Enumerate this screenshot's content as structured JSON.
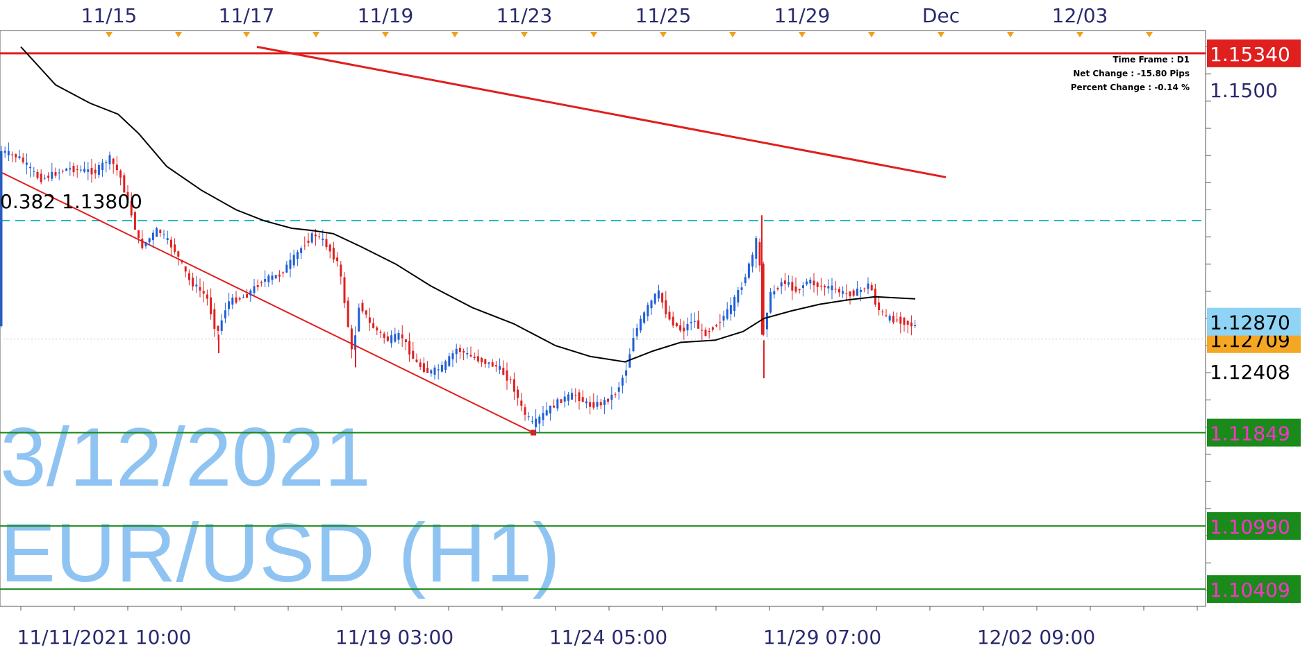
{
  "colors": {
    "up_candle": "#1f5fd6",
    "down_candle": "#e01f1f",
    "moving_average": "#000000",
    "resistance_line": "#e01f1f",
    "fib_line": "#29b6c8",
    "support_line": "#1a8a1a",
    "watermark": "#8fc4f2",
    "axis_text": "#2a2a6e",
    "date_marker": "#f0a020",
    "current_price_bg": "#8fd3f5",
    "secondary_price_bg": "#f5a623",
    "resistance_label_bg": "#e01f1f",
    "support_label_bg": "#1a8a1a",
    "support_label_text": "#ff33cc",
    "resistance_label_text": "#ffffff"
  },
  "watermark": {
    "date": "3/12/2021",
    "symbol": "EUR/USD (H1)"
  },
  "info_box": {
    "time_frame": "Time Frame : D1",
    "net_change": "Net Change : -15.80 Pips",
    "percent_change": "Percent Change : -0.14 %"
  },
  "fib_label": "0.382 1.13800",
  "chart_data": {
    "type": "candlestick",
    "symbol": "EUR/USD",
    "timeframe": "H1",
    "top_date_ticks": [
      "11/15",
      "11/17",
      "11/19",
      "11/23",
      "11/25",
      "11/29",
      "Dec",
      "12/03"
    ],
    "bottom_time_ticks": [
      "11/11/2021 10:00",
      "11/19 03:00",
      "11/24 05:00",
      "11/29 07:00",
      "12/02 09:00"
    ],
    "y_ticks": [
      "1.1500",
      "1.12408"
    ],
    "y_range": [
      1.1025,
      1.1555
    ],
    "price_labels": [
      {
        "text": "1.15340",
        "value": 1.1534,
        "kind": "resistance"
      },
      {
        "text": "1.12870",
        "value": 1.1287,
        "kind": "current"
      },
      {
        "text": "1.12709",
        "value": 1.1271,
        "kind": "secondary"
      },
      {
        "text": "1.11849",
        "value": 1.11849,
        "kind": "support"
      },
      {
        "text": "1.10990",
        "value": 1.1099,
        "kind": "support"
      },
      {
        "text": "1.10409",
        "value": 1.10409,
        "kind": "support"
      }
    ],
    "horizontal_lines": [
      {
        "name": "resistance",
        "value": 1.1534
      },
      {
        "name": "fib-0.382",
        "value": 1.138
      },
      {
        "name": "support-1",
        "value": 1.11849
      },
      {
        "name": "support-2",
        "value": 1.1099
      },
      {
        "name": "support-3",
        "value": 1.10409
      }
    ],
    "price_path": [
      [
        0,
        1.1445
      ],
      [
        30,
        1.1438
      ],
      [
        60,
        1.1418
      ],
      [
        100,
        1.1428
      ],
      [
        140,
        1.1425
      ],
      [
        160,
        1.1438
      ],
      [
        175,
        1.1422
      ],
      [
        190,
        1.139
      ],
      [
        205,
        1.1355
      ],
      [
        230,
        1.1372
      ],
      [
        255,
        1.1352
      ],
      [
        275,
        1.1325
      ],
      [
        300,
        1.131
      ],
      [
        315,
        1.1275
      ],
      [
        330,
        1.1305
      ],
      [
        355,
        1.131
      ],
      [
        380,
        1.1325
      ],
      [
        405,
        1.133
      ],
      [
        425,
        1.1345
      ],
      [
        440,
        1.1358
      ],
      [
        455,
        1.1368
      ],
      [
        470,
        1.136
      ],
      [
        490,
        1.134
      ],
      [
        500,
        1.13
      ],
      [
        510,
        1.1255
      ],
      [
        520,
        1.1305
      ],
      [
        535,
        1.1285
      ],
      [
        560,
        1.127
      ],
      [
        580,
        1.1275
      ],
      [
        600,
        1.125
      ],
      [
        620,
        1.124
      ],
      [
        640,
        1.1245
      ],
      [
        660,
        1.1262
      ],
      [
        680,
        1.1255
      ],
      [
        700,
        1.125
      ],
      [
        720,
        1.1245
      ],
      [
        740,
        1.123
      ],
      [
        755,
        1.1205
      ],
      [
        770,
        1.1192
      ],
      [
        790,
        1.1205
      ],
      [
        810,
        1.1215
      ],
      [
        830,
        1.122
      ],
      [
        850,
        1.121
      ],
      [
        870,
        1.1212
      ],
      [
        890,
        1.1222
      ],
      [
        905,
        1.1245
      ],
      [
        915,
        1.1275
      ],
      [
        935,
        1.13
      ],
      [
        950,
        1.1315
      ],
      [
        965,
        1.129
      ],
      [
        985,
        1.1278
      ],
      [
        1000,
        1.129
      ],
      [
        1015,
        1.1275
      ],
      [
        1035,
        1.1285
      ],
      [
        1055,
        1.13
      ],
      [
        1070,
        1.132
      ],
      [
        1085,
        1.1345
      ],
      [
        1095,
        1.137
      ],
      [
        1100,
        1.127
      ],
      [
        1110,
        1.131
      ],
      [
        1130,
        1.1325
      ],
      [
        1150,
        1.1315
      ],
      [
        1165,
        1.1325
      ],
      [
        1180,
        1.132
      ],
      [
        1200,
        1.1318
      ],
      [
        1220,
        1.1312
      ],
      [
        1240,
        1.1315
      ],
      [
        1255,
        1.1322
      ],
      [
        1265,
        1.13
      ],
      [
        1280,
        1.129
      ],
      [
        1300,
        1.1288
      ],
      [
        1318,
        1.1283
      ]
    ],
    "moving_average": [
      [
        30,
        1.154
      ],
      [
        80,
        1.1505
      ],
      [
        130,
        1.1488
      ],
      [
        170,
        1.1478
      ],
      [
        200,
        1.146
      ],
      [
        240,
        1.143
      ],
      [
        290,
        1.1408
      ],
      [
        340,
        1.139
      ],
      [
        380,
        1.138
      ],
      [
        420,
        1.1373
      ],
      [
        450,
        1.1371
      ],
      [
        480,
        1.1368
      ],
      [
        520,
        1.1356
      ],
      [
        570,
        1.134
      ],
      [
        620,
        1.132
      ],
      [
        680,
        1.13
      ],
      [
        740,
        1.1285
      ],
      [
        800,
        1.1265
      ],
      [
        850,
        1.1255
      ],
      [
        900,
        1.125
      ],
      [
        940,
        1.126
      ],
      [
        980,
        1.1268
      ],
      [
        1030,
        1.127
      ],
      [
        1070,
        1.1278
      ],
      [
        1100,
        1.129
      ],
      [
        1140,
        1.1297
      ],
      [
        1180,
        1.1303
      ],
      [
        1220,
        1.1307
      ],
      [
        1260,
        1.131
      ],
      [
        1318,
        1.1308
      ]
    ],
    "trendlines": [
      {
        "name": "descending-resistance",
        "from": [
          370,
          1.154
        ],
        "to": [
          1362,
          1.142
        ]
      },
      {
        "name": "descending-support",
        "from": [
          0,
          1.1425
        ],
        "to": [
          768,
          1.11849
        ]
      }
    ]
  }
}
